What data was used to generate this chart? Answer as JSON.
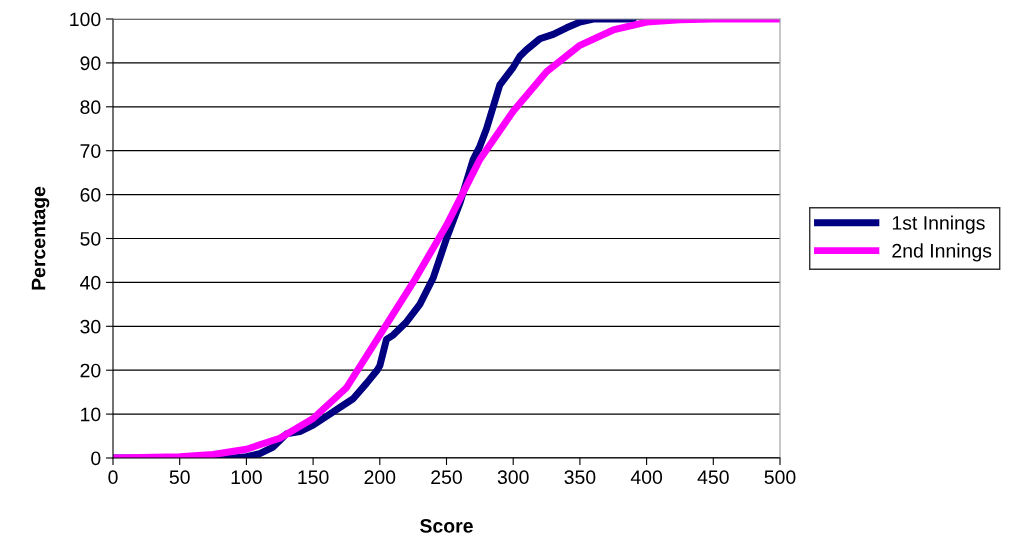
{
  "chart_data": {
    "type": "line",
    "xlabel": "Score",
    "ylabel": "Percentage",
    "xlim": [
      0,
      500
    ],
    "xticks": [
      0,
      50,
      100,
      150,
      200,
      250,
      300,
      350,
      400,
      450,
      500
    ],
    "ylim": [
      0,
      100
    ],
    "yticks": [
      0,
      10,
      20,
      30,
      40,
      50,
      60,
      70,
      80,
      90,
      100
    ],
    "grid": "y",
    "legend": "right",
    "marker": "none",
    "line_style": "solid",
    "series": [
      {
        "name": "1st Innings",
        "color": "#000080",
        "x": [
          0,
          90,
          100,
          110,
          120,
          125,
          130,
          140,
          150,
          160,
          170,
          180,
          190,
          198,
          200,
          205,
          210,
          220,
          230,
          240,
          250,
          260,
          270,
          275,
          280,
          285,
          290,
          295,
          300,
          305,
          310,
          320,
          330,
          340,
          350,
          360,
          390
        ],
        "values": [
          0,
          0,
          0.3,
          1,
          2.5,
          4,
          5.5,
          6,
          7.5,
          9.5,
          11.5,
          13.5,
          17,
          20,
          21,
          27,
          28,
          31,
          35,
          41,
          50,
          58,
          68,
          71,
          75,
          80,
          85,
          87,
          89,
          91.5,
          93,
          95.5,
          96.5,
          98,
          99.3,
          100,
          100
        ]
      },
      {
        "name": "2nd Innings",
        "color": "#ff00ff",
        "x": [
          0,
          50,
          75,
          100,
          125,
          150,
          175,
          200,
          225,
          250,
          265,
          275,
          300,
          325,
          350,
          375,
          400,
          425,
          450,
          500
        ],
        "values": [
          0,
          0.3,
          0.8,
          2,
          4.5,
          9,
          16,
          28,
          40,
          53,
          62,
          68,
          79,
          88,
          94,
          97.5,
          99.3,
          99.8,
          100,
          100
        ]
      }
    ]
  }
}
